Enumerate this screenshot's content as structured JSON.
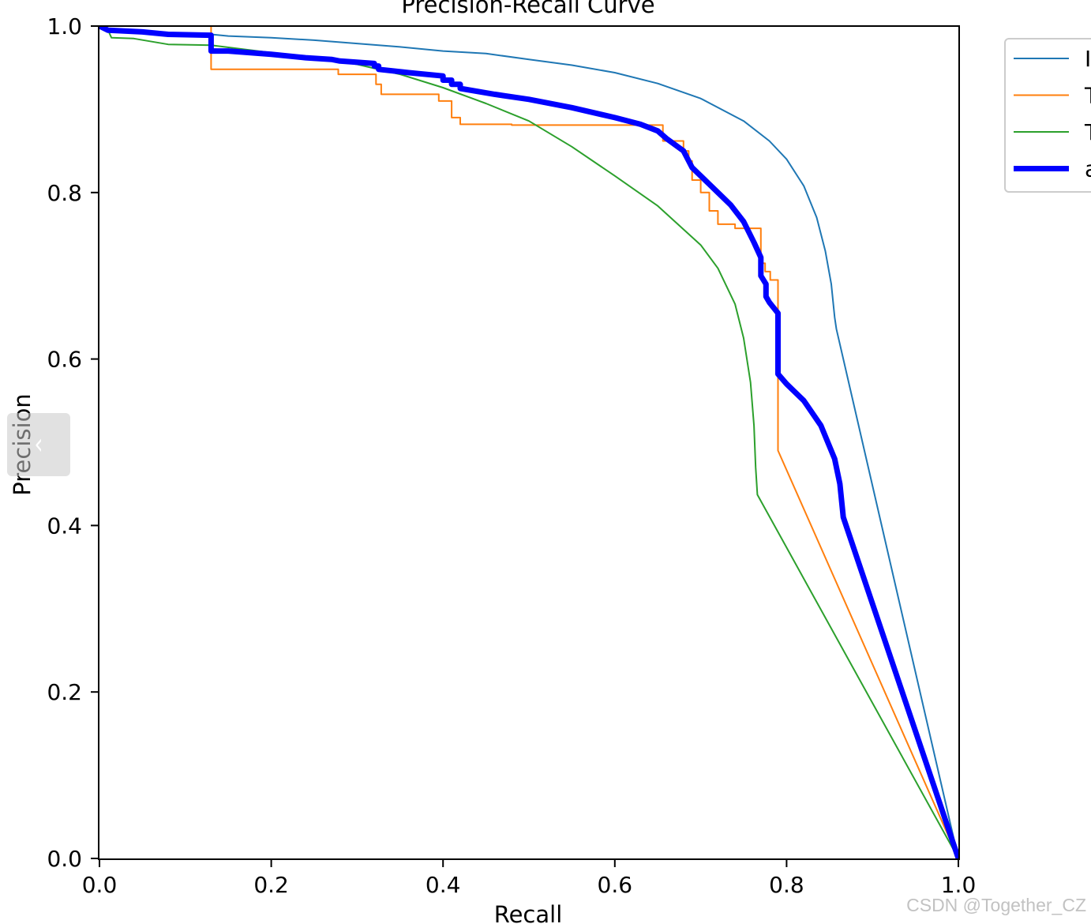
{
  "nav": {
    "prev_icon": "chevron-left-icon",
    "prev_glyph": "‹"
  },
  "watermark": "CSDN @Together_CZ",
  "chart_data": {
    "type": "line",
    "title": "Precision-Recall Curve",
    "xlabel": "Recall",
    "ylabel": "Precision",
    "xlim": [
      0,
      1
    ],
    "ylim": [
      0,
      1
    ],
    "x_ticks": [
      0.0,
      0.2,
      0.4,
      0.6,
      0.8,
      1.0
    ],
    "y_ticks": [
      0.0,
      0.2,
      0.4,
      0.6,
      0.8,
      1.0
    ],
    "x_tick_labels": [
      "0.0",
      "0.2",
      "0.4",
      "0.6",
      "0.8",
      "1.0"
    ],
    "y_tick_labels": [
      "0.0",
      "0.2",
      "0.4",
      "0.6",
      "0.8",
      "1.0"
    ],
    "grid": false,
    "legend": {
      "placement": "outside-top-right"
    },
    "series": [
      {
        "name": "I",
        "color": "#1f77b4",
        "line_width": 2,
        "points": [
          [
            0.0,
            1.0
          ],
          [
            0.012,
            0.995
          ],
          [
            0.03,
            0.993
          ],
          [
            0.08,
            0.992
          ],
          [
            0.13,
            0.99
          ],
          [
            0.15,
            0.988
          ],
          [
            0.2,
            0.986
          ],
          [
            0.25,
            0.983
          ],
          [
            0.3,
            0.979
          ],
          [
            0.35,
            0.975
          ],
          [
            0.4,
            0.97
          ],
          [
            0.45,
            0.967
          ],
          [
            0.5,
            0.96
          ],
          [
            0.55,
            0.953
          ],
          [
            0.6,
            0.944
          ],
          [
            0.65,
            0.931
          ],
          [
            0.7,
            0.913
          ],
          [
            0.75,
            0.886
          ],
          [
            0.78,
            0.862
          ],
          [
            0.8,
            0.84
          ],
          [
            0.82,
            0.808
          ],
          [
            0.835,
            0.77
          ],
          [
            0.845,
            0.73
          ],
          [
            0.852,
            0.69
          ],
          [
            0.856,
            0.65
          ],
          [
            0.858,
            0.636
          ],
          [
            1.0,
            0.0
          ]
        ]
      },
      {
        "name": "T",
        "color": "#ff7f0e",
        "line_width": 2,
        "points": [
          [
            0.13,
            1.0
          ],
          [
            0.13,
            0.948
          ],
          [
            0.278,
            0.948
          ],
          [
            0.278,
            0.942
          ],
          [
            0.322,
            0.942
          ],
          [
            0.322,
            0.93
          ],
          [
            0.328,
            0.93
          ],
          [
            0.328,
            0.918
          ],
          [
            0.395,
            0.918
          ],
          [
            0.395,
            0.91
          ],
          [
            0.41,
            0.91
          ],
          [
            0.41,
            0.89
          ],
          [
            0.42,
            0.89
          ],
          [
            0.42,
            0.882
          ],
          [
            0.48,
            0.882
          ],
          [
            0.48,
            0.881
          ],
          [
            0.656,
            0.881
          ],
          [
            0.656,
            0.862
          ],
          [
            0.68,
            0.862
          ],
          [
            0.68,
            0.85
          ],
          [
            0.686,
            0.85
          ],
          [
            0.686,
            0.838
          ],
          [
            0.69,
            0.838
          ],
          [
            0.69,
            0.815
          ],
          [
            0.7,
            0.815
          ],
          [
            0.7,
            0.8
          ],
          [
            0.71,
            0.8
          ],
          [
            0.71,
            0.778
          ],
          [
            0.72,
            0.778
          ],
          [
            0.72,
            0.762
          ],
          [
            0.74,
            0.762
          ],
          [
            0.74,
            0.757
          ],
          [
            0.77,
            0.757
          ],
          [
            0.77,
            0.715
          ],
          [
            0.775,
            0.715
          ],
          [
            0.775,
            0.705
          ],
          [
            0.781,
            0.705
          ],
          [
            0.781,
            0.695
          ],
          [
            0.79,
            0.695
          ],
          [
            0.79,
            0.49
          ],
          [
            1.0,
            0.0
          ]
        ]
      },
      {
        "name": "T",
        "color": "#2ca02c",
        "line_width": 2,
        "points": [
          [
            0.0,
            1.0
          ],
          [
            0.01,
            0.995
          ],
          [
            0.014,
            0.986
          ],
          [
            0.04,
            0.985
          ],
          [
            0.08,
            0.978
          ],
          [
            0.13,
            0.977
          ],
          [
            0.2,
            0.968
          ],
          [
            0.25,
            0.962
          ],
          [
            0.3,
            0.954
          ],
          [
            0.35,
            0.942
          ],
          [
            0.4,
            0.926
          ],
          [
            0.45,
            0.907
          ],
          [
            0.5,
            0.886
          ],
          [
            0.55,
            0.855
          ],
          [
            0.6,
            0.82
          ],
          [
            0.65,
            0.784
          ],
          [
            0.7,
            0.737
          ],
          [
            0.72,
            0.709
          ],
          [
            0.74,
            0.666
          ],
          [
            0.75,
            0.625
          ],
          [
            0.758,
            0.572
          ],
          [
            0.762,
            0.52
          ],
          [
            0.764,
            0.47
          ],
          [
            0.766,
            0.437
          ],
          [
            1.0,
            0.0
          ]
        ]
      },
      {
        "name": "a",
        "color": "#0000ff",
        "line_width": 7,
        "points": [
          [
            0.0,
            1.0
          ],
          [
            0.01,
            0.995
          ],
          [
            0.05,
            0.993
          ],
          [
            0.08,
            0.99
          ],
          [
            0.13,
            0.989
          ],
          [
            0.13,
            0.97
          ],
          [
            0.15,
            0.97
          ],
          [
            0.2,
            0.966
          ],
          [
            0.24,
            0.962
          ],
          [
            0.27,
            0.96
          ],
          [
            0.28,
            0.958
          ],
          [
            0.32,
            0.955
          ],
          [
            0.32,
            0.952
          ],
          [
            0.325,
            0.952
          ],
          [
            0.325,
            0.948
          ],
          [
            0.36,
            0.944
          ],
          [
            0.4,
            0.94
          ],
          [
            0.4,
            0.935
          ],
          [
            0.41,
            0.935
          ],
          [
            0.41,
            0.93
          ],
          [
            0.42,
            0.93
          ],
          [
            0.42,
            0.925
          ],
          [
            0.46,
            0.918
          ],
          [
            0.5,
            0.912
          ],
          [
            0.55,
            0.902
          ],
          [
            0.6,
            0.89
          ],
          [
            0.63,
            0.882
          ],
          [
            0.65,
            0.874
          ],
          [
            0.66,
            0.865
          ],
          [
            0.68,
            0.85
          ],
          [
            0.69,
            0.83
          ],
          [
            0.7,
            0.82
          ],
          [
            0.71,
            0.81
          ],
          [
            0.72,
            0.8
          ],
          [
            0.735,
            0.785
          ],
          [
            0.75,
            0.765
          ],
          [
            0.762,
            0.74
          ],
          [
            0.77,
            0.722
          ],
          [
            0.77,
            0.7
          ],
          [
            0.776,
            0.69
          ],
          [
            0.776,
            0.675
          ],
          [
            0.78,
            0.668
          ],
          [
            0.79,
            0.655
          ],
          [
            0.79,
            0.582
          ],
          [
            0.8,
            0.57
          ],
          [
            0.82,
            0.55
          ],
          [
            0.84,
            0.52
          ],
          [
            0.856,
            0.48
          ],
          [
            0.862,
            0.45
          ],
          [
            0.866,
            0.41
          ],
          [
            1.0,
            0.0
          ]
        ]
      }
    ]
  }
}
